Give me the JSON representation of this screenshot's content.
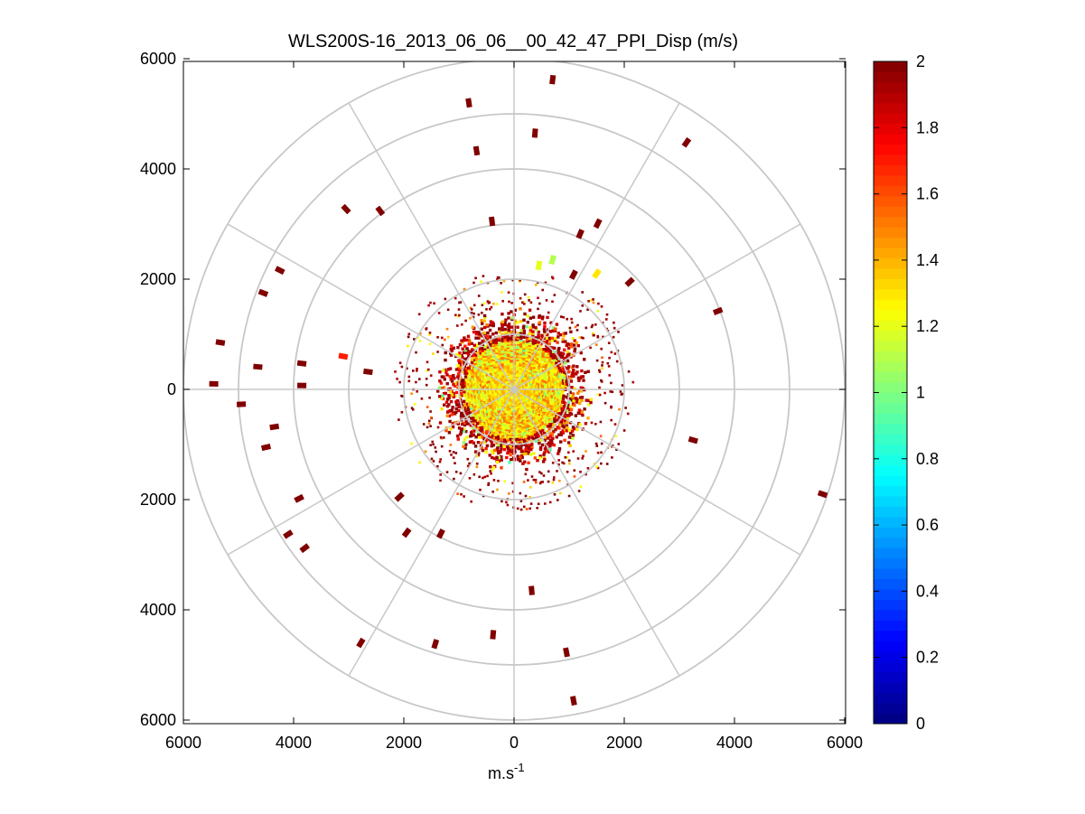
{
  "chart_data": {
    "type": "heatmap",
    "subtype": "polar-ppi",
    "title": "WLS200S-16_2013_06_06__00_42_47_PPI_Disp (m/s)",
    "xlabel_main": "m.s",
    "xlabel_sup": "-1",
    "xlim": [
      -6000,
      6000
    ],
    "ylim": [
      -6000,
      6000
    ],
    "x_tick_values": [
      -6000,
      -4000,
      -2000,
      0,
      2000,
      4000,
      6000
    ],
    "x_tick_labels": [
      "6000",
      "4000",
      "2000",
      "0",
      "2000",
      "4000",
      "6000"
    ],
    "y_tick_values": [
      6000,
      4000,
      2000,
      0,
      -2000,
      -4000,
      -6000
    ],
    "y_tick_labels": [
      "6000",
      "4000",
      "2000",
      "0",
      "2000",
      "4000",
      "6000"
    ],
    "range_rings": [
      1000,
      2000,
      3000,
      4000,
      5000,
      6000
    ],
    "spoke_angles_deg": [
      0,
      30,
      60,
      90,
      120,
      150,
      180,
      210,
      240,
      270,
      300,
      330
    ],
    "colormap": "jet",
    "clim": [
      0,
      2
    ],
    "colorbar_ticks": [
      "0",
      "0.2",
      "0.4",
      "0.6",
      "0.8",
      "1",
      "1.2",
      "1.4",
      "1.6",
      "1.8",
      "2"
    ],
    "colors": {
      "grid": "#c8c8c8",
      "axis": "#000000",
      "high_value": "#800000"
    },
    "center_field": {
      "inner_radius_m": 900,
      "outer_radius_m": 1500,
      "typical_value": 1.3
    },
    "isolated_returns": [
      {
        "x": 700,
        "y": 5620,
        "v": 2
      },
      {
        "x": -820,
        "y": 5200,
        "v": 2
      },
      {
        "x": 380,
        "y": 4650,
        "v": 2
      },
      {
        "x": -680,
        "y": 4330,
        "v": 2
      },
      {
        "x": 3130,
        "y": 4480,
        "v": 2
      },
      {
        "x": -3050,
        "y": 3270,
        "v": 2
      },
      {
        "x": -2430,
        "y": 3240,
        "v": 2
      },
      {
        "x": -400,
        "y": 3050,
        "v": 2
      },
      {
        "x": 1520,
        "y": 3010,
        "v": 2
      },
      {
        "x": 1200,
        "y": 2820,
        "v": 2
      },
      {
        "x": -4250,
        "y": 2160,
        "v": 2
      },
      {
        "x": -4550,
        "y": 1750,
        "v": 2
      },
      {
        "x": 2100,
        "y": 1950,
        "v": 2
      },
      {
        "x": 3700,
        "y": 1420,
        "v": 2
      },
      {
        "x": -5330,
        "y": 850,
        "v": 2
      },
      {
        "x": -4650,
        "y": 410,
        "v": 2
      },
      {
        "x": -3850,
        "y": 470,
        "v": 2
      },
      {
        "x": -3100,
        "y": 600,
        "v": 1.7
      },
      {
        "x": -2650,
        "y": 320,
        "v": 2
      },
      {
        "x": -5450,
        "y": 100,
        "v": 2
      },
      {
        "x": -3850,
        "y": 70,
        "v": 2
      },
      {
        "x": -4950,
        "y": -270,
        "v": 2
      },
      {
        "x": -4350,
        "y": -680,
        "v": 2
      },
      {
        "x": -4500,
        "y": -1050,
        "v": 2
      },
      {
        "x": 3250,
        "y": -920,
        "v": 2
      },
      {
        "x": -3900,
        "y": -1980,
        "v": 2
      },
      {
        "x": -2080,
        "y": -1950,
        "v": 2
      },
      {
        "x": 5600,
        "y": -1900,
        "v": 2
      },
      {
        "x": -4100,
        "y": -2630,
        "v": 2
      },
      {
        "x": -3800,
        "y": -2880,
        "v": 2
      },
      {
        "x": -1950,
        "y": -2600,
        "v": 2
      },
      {
        "x": -1330,
        "y": -2620,
        "v": 2
      },
      {
        "x": 320,
        "y": -3650,
        "v": 2
      },
      {
        "x": -2780,
        "y": -4600,
        "v": 2
      },
      {
        "x": -380,
        "y": -4450,
        "v": 2
      },
      {
        "x": -1430,
        "y": -4620,
        "v": 2
      },
      {
        "x": 950,
        "y": -4770,
        "v": 2
      },
      {
        "x": 1080,
        "y": -5650,
        "v": 2
      },
      {
        "x": 1080,
        "y": 2080,
        "v": 2
      },
      {
        "x": 1500,
        "y": 2100,
        "v": 1.3
      },
      {
        "x": 450,
        "y": 2250,
        "v": 1.2
      },
      {
        "x": 700,
        "y": 2350,
        "v": 1.1
      }
    ]
  }
}
